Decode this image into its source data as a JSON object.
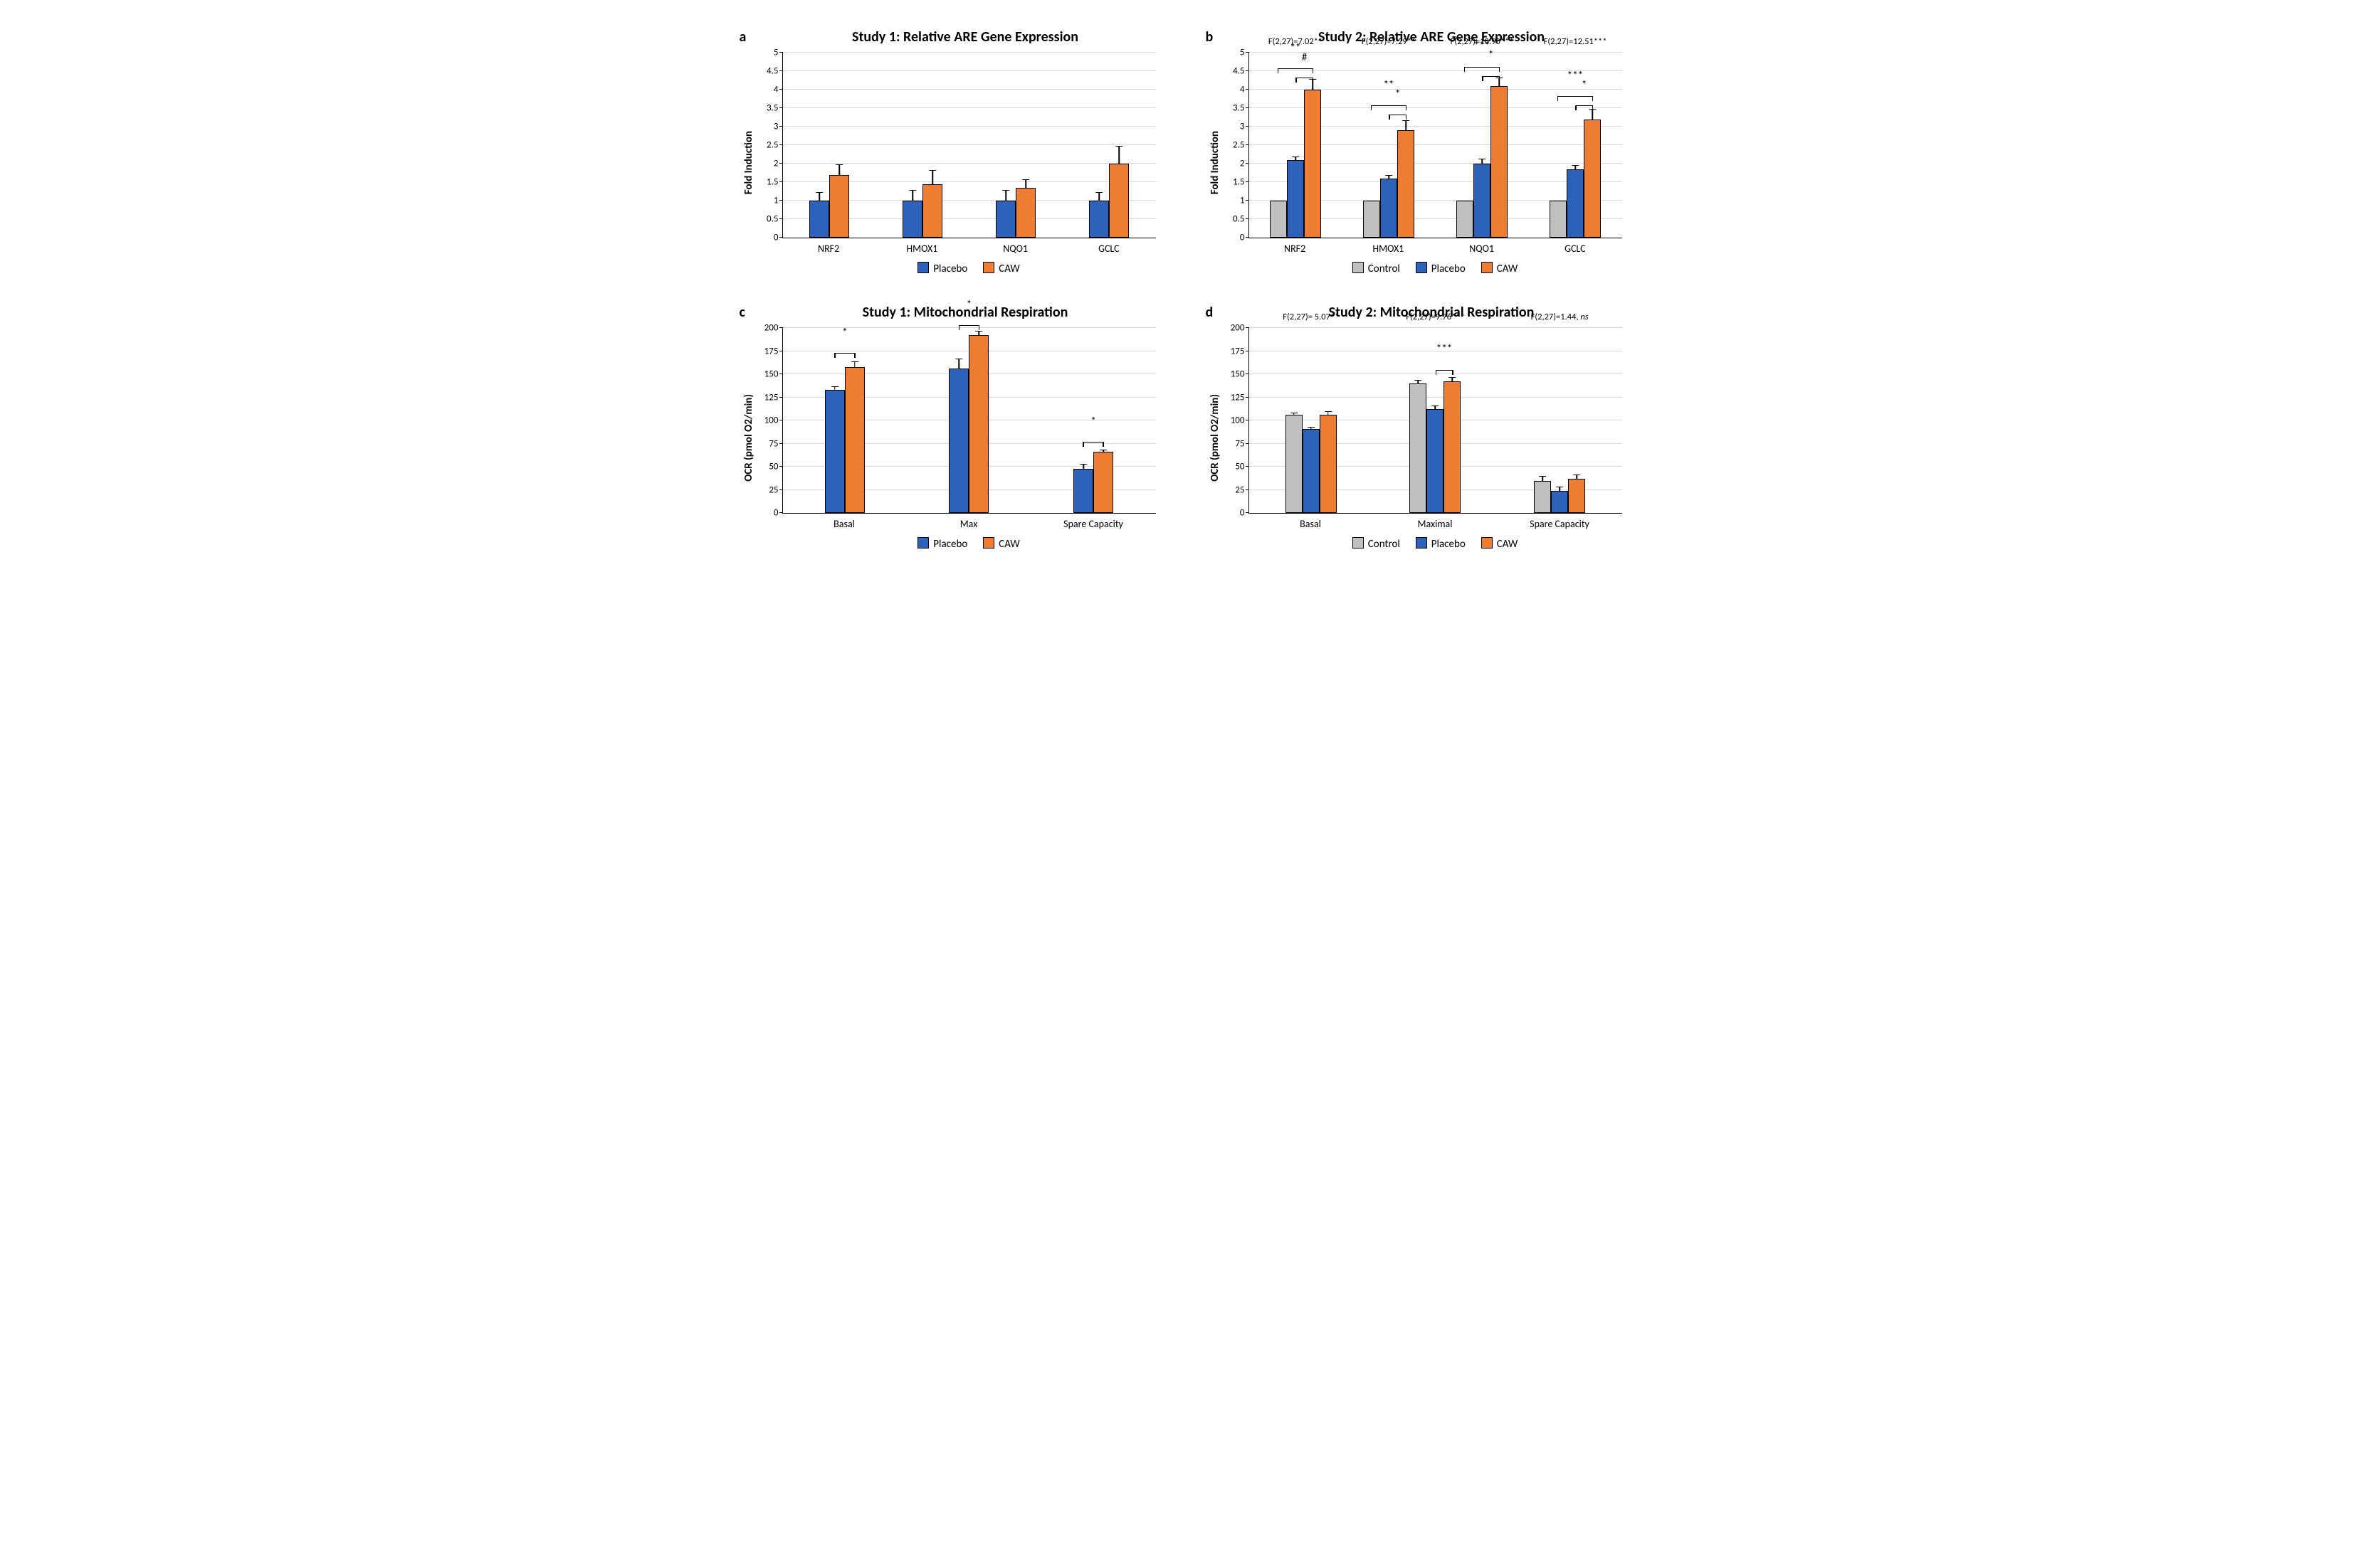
{
  "colors": {
    "control": "#bfbfbf",
    "placebo": "#2e61ba",
    "caw": "#ed7d31",
    "grid": "#d9d9d9",
    "border": "#000000",
    "bg": "#ffffff"
  },
  "panels": {
    "a": {
      "label": "a",
      "title": "Study 1: Relative ARE Gene Expression",
      "ylabel": "Fold Induction",
      "ymin": 0,
      "ymax": 5,
      "ystep": 0.5,
      "categories": [
        "NRF2",
        "HMOX1",
        "NQO1",
        "GCLC"
      ],
      "series": [
        {
          "name": "Placebo",
          "color": "placebo",
          "values": [
            1.0,
            1.0,
            1.0,
            1.0
          ],
          "errors": [
            0.25,
            0.3,
            0.3,
            0.25
          ]
        },
        {
          "name": "CAW",
          "color": "caw",
          "values": [
            1.7,
            1.45,
            1.35,
            2.0
          ],
          "errors": [
            0.3,
            0.4,
            0.25,
            0.5
          ]
        }
      ],
      "legend": [
        "Placebo",
        "CAW"
      ]
    },
    "b": {
      "label": "b",
      "title": "Study 2: Relative ARE Gene Expression",
      "ylabel": "Fold Induction",
      "ymin": 0,
      "ymax": 5,
      "ystep": 0.5,
      "categories": [
        "NRF2",
        "HMOX1",
        "NQO1",
        "GCLC"
      ],
      "series": [
        {
          "name": "Control",
          "color": "control",
          "values": [
            1.0,
            1.0,
            1.0,
            1.0
          ],
          "errors": [
            0,
            0,
            0,
            0
          ]
        },
        {
          "name": "Placebo",
          "color": "placebo",
          "values": [
            2.1,
            1.6,
            2.0,
            1.85
          ],
          "errors": [
            0.12,
            0.12,
            0.15,
            0.13
          ]
        },
        {
          "name": "CAW",
          "color": "caw",
          "values": [
            4.0,
            2.9,
            4.1,
            3.2
          ],
          "errors": [
            0.3,
            0.3,
            0.25,
            0.3
          ]
        }
      ],
      "legend": [
        "Control",
        "Placebo",
        "CAW"
      ],
      "ftests": [
        "F(2,27)=7.02**",
        "F(2,27)=7.29**",
        "F(2,27)=10.90***",
        "F(2,27)=12.51***"
      ],
      "sig": [
        {
          "cat": 0,
          "from": 0,
          "to": 2,
          "y": 4.55,
          "text": "**"
        },
        {
          "cat": 0,
          "from": 1,
          "to": 2,
          "y": 4.3,
          "text": "#"
        },
        {
          "cat": 1,
          "from": 0,
          "to": 2,
          "y": 3.55,
          "text": "**"
        },
        {
          "cat": 1,
          "from": 1,
          "to": 2,
          "y": 3.3,
          "text": "*"
        },
        {
          "cat": 2,
          "from": 0,
          "to": 2,
          "y": 4.6,
          "text": "***"
        },
        {
          "cat": 2,
          "from": 1,
          "to": 2,
          "y": 4.35,
          "text": "*"
        },
        {
          "cat": 3,
          "from": 0,
          "to": 2,
          "y": 3.8,
          "text": "***"
        },
        {
          "cat": 3,
          "from": 1,
          "to": 2,
          "y": 3.55,
          "text": "*"
        }
      ]
    },
    "c": {
      "label": "c",
      "title": "Study 1: Mitochondrial Respiration",
      "ylabel": "OCR (pmol O2/min)",
      "ymin": 0,
      "ymax": 200,
      "ystep": 25,
      "categories": [
        "Basal",
        "Max",
        "Spare Capacity"
      ],
      "series": [
        {
          "name": "Placebo",
          "color": "placebo",
          "values": [
            133,
            156,
            48
          ],
          "errors": [
            5,
            12,
            6
          ]
        },
        {
          "name": "CAW",
          "color": "caw",
          "values": [
            158,
            192,
            66
          ],
          "errors": [
            7,
            6,
            3
          ]
        }
      ],
      "legend": [
        "Placebo",
        "CAW"
      ],
      "sig": [
        {
          "cat": 0,
          "from": 0,
          "to": 1,
          "y": 172,
          "text": "*"
        },
        {
          "cat": 1,
          "from": 0,
          "to": 1,
          "y": 202,
          "text": "*"
        },
        {
          "cat": 2,
          "from": 0,
          "to": 1,
          "y": 76,
          "text": "*"
        }
      ]
    },
    "d": {
      "label": "d",
      "title": "Study 2: Mitochondrial Respiration",
      "ylabel": "OCR (pmol O2/min)",
      "ymin": 0,
      "ymax": 200,
      "ystep": 25,
      "categories": [
        "Basal",
        "Maximal",
        "Spare Capacity"
      ],
      "series": [
        {
          "name": "Control",
          "color": "control",
          "values": [
            106,
            140,
            35
          ],
          "errors": [
            3,
            5,
            6
          ]
        },
        {
          "name": "Placebo",
          "color": "placebo",
          "values": [
            91,
            112,
            24
          ],
          "errors": [
            3,
            5,
            5
          ]
        },
        {
          "name": "CAW",
          "color": "caw",
          "values": [
            106,
            142,
            37
          ],
          "errors": [
            5,
            6,
            5
          ]
        }
      ],
      "legend": [
        "Control",
        "Placebo",
        "CAW"
      ],
      "ftests": [
        "F(2,27)= 5.07**",
        "F(2,27)=9.76***",
        "F(2,27)=1.44, ns"
      ],
      "sig": [
        {
          "cat": 1,
          "from": 1,
          "to": 2,
          "y": 154,
          "text": "***"
        }
      ]
    }
  }
}
